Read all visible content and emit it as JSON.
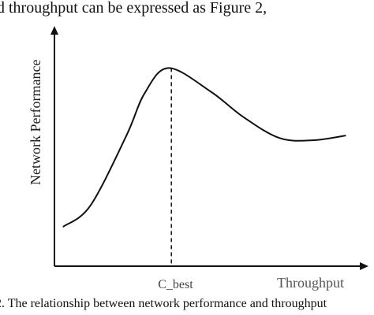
{
  "document": {
    "top_text": "d throughput can be expressed as Figure 2,",
    "caption": "2. The relationship between network performance and throughput"
  },
  "chart_data": {
    "type": "line",
    "xlabel": "Throughput",
    "ylabel": "Network Performance",
    "marker_label": "C_best",
    "xlim": [
      0,
      1
    ],
    "ylim": [
      0,
      1
    ],
    "series": [
      {
        "values": [
          {
            "x": 0.03,
            "y": 0.17
          },
          {
            "x": 0.12,
            "y": 0.26
          },
          {
            "x": 0.24,
            "y": 0.56
          },
          {
            "x": 0.3,
            "y": 0.74
          },
          {
            "x": 0.38,
            "y": 0.85
          },
          {
            "x": 0.52,
            "y": 0.75
          },
          {
            "x": 0.63,
            "y": 0.64
          },
          {
            "x": 0.75,
            "y": 0.55
          },
          {
            "x": 0.86,
            "y": 0.54
          },
          {
            "x": 0.97,
            "y": 0.56
          }
        ]
      }
    ],
    "marker_x": 0.39,
    "grid": false,
    "legend": "none"
  },
  "colors": {
    "ink": "#111111",
    "muted": "#555555",
    "paper": "#ffffff"
  }
}
